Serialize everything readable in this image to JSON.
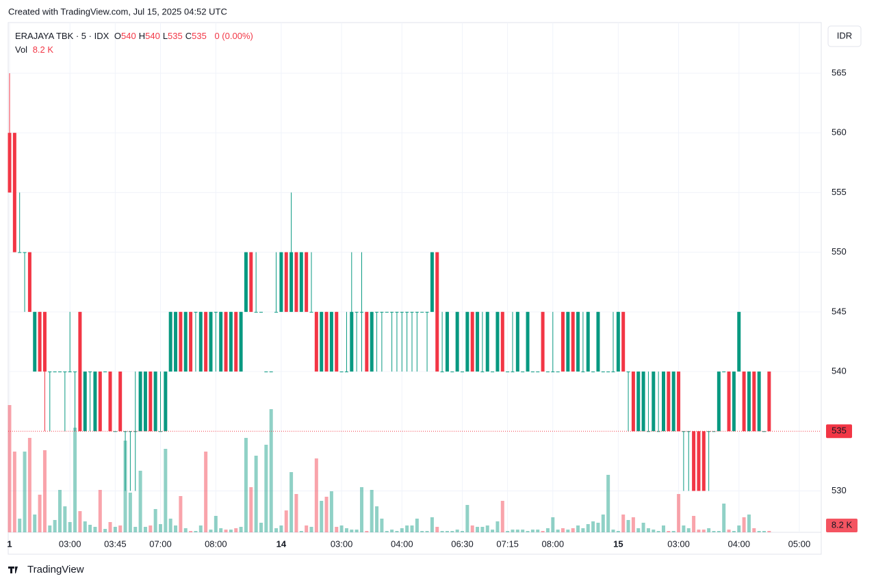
{
  "watermark": "Created with TradingView.com, Jul 15, 2025 04:52 UTC",
  "brand": "TradingView",
  "chart_data": {
    "type": "candlestick",
    "symbol": "ERAJAYA TBK · 5 · IDX",
    "ohlc_letters": [
      "O",
      "H",
      "L",
      "C"
    ],
    "change_label": "0 (0.00%)",
    "volume_title": "Vol",
    "last_volume_label": "8.2 K",
    "currency": "IDR",
    "up_color": "#089981",
    "down_color": "#f23645",
    "grid": true,
    "ylim": [
      526.53,
      569.24
    ],
    "yticks": [
      530,
      540,
      545,
      550,
      555,
      560,
      565
    ],
    "xticks": [
      {
        "value": 0,
        "label": "1"
      },
      {
        "value": 12,
        "label": "03:00"
      },
      {
        "value": 21,
        "label": "03:45"
      },
      {
        "value": 30,
        "label": "07:00"
      },
      {
        "value": 41,
        "label": "08:00"
      },
      {
        "value": 54,
        "label": "14"
      },
      {
        "value": 66,
        "label": "03:00"
      },
      {
        "value": 78,
        "label": "04:00"
      },
      {
        "value": 90,
        "label": "06:30"
      },
      {
        "value": 99,
        "label": "07:15"
      },
      {
        "value": 108,
        "label": "08:00"
      },
      {
        "value": 121,
        "label": "15"
      },
      {
        "value": 133,
        "label": "03:00"
      },
      {
        "value": 145,
        "label": "04:00"
      },
      {
        "value": 157,
        "label": "05:00"
      }
    ],
    "candles": [
      [
        560,
        565,
        555,
        555,
        744000
      ],
      [
        560,
        560,
        550,
        550,
        472000
      ],
      [
        550,
        555,
        550,
        550,
        80000
      ],
      [
        550,
        550,
        545,
        550,
        472000
      ],
      [
        550,
        550,
        545,
        545,
        552000
      ],
      [
        540,
        545,
        540,
        545,
        104000
      ],
      [
        545,
        545,
        540,
        540,
        220000
      ],
      [
        545,
        545,
        535,
        540,
        480000
      ],
      [
        540,
        540,
        535,
        540,
        40000
      ],
      [
        540,
        540,
        540,
        540,
        72000
      ],
      [
        540,
        540,
        540,
        540,
        248000
      ],
      [
        540,
        540,
        535,
        540,
        152000
      ],
      [
        540,
        545,
        540,
        540,
        60000
      ],
      [
        540,
        540,
        535,
        540,
        612000
      ],
      [
        545,
        545,
        535,
        535,
        124000
      ],
      [
        535,
        540,
        535,
        540,
        64000
      ],
      [
        540,
        540,
        535,
        540,
        44000
      ],
      [
        535,
        540,
        535,
        540,
        32000
      ],
      [
        540,
        540,
        535,
        535,
        248000
      ],
      [
        540,
        540,
        540,
        540,
        20000
      ],
      [
        540,
        540,
        535,
        535,
        60000
      ],
      [
        535,
        535,
        535,
        535,
        32000
      ],
      [
        540,
        540,
        535,
        535,
        40000
      ],
      [
        535,
        535,
        530,
        535,
        536000
      ],
      [
        535,
        535,
        530,
        535,
        232000
      ],
      [
        535,
        540,
        530,
        535,
        32000
      ],
      [
        535,
        540,
        535,
        540,
        360000
      ],
      [
        535,
        540,
        535,
        540,
        32000
      ],
      [
        540,
        540,
        535,
        535,
        40000
      ],
      [
        535,
        540,
        535,
        540,
        136000
      ],
      [
        535,
        540,
        535,
        535,
        48000
      ],
      [
        535,
        540,
        535,
        540,
        488000
      ],
      [
        540,
        545,
        540,
        545,
        80000
      ],
      [
        540,
        545,
        540,
        545,
        40000
      ],
      [
        545,
        545,
        540,
        540,
        212000
      ],
      [
        540,
        545,
        540,
        545,
        24000
      ],
      [
        545,
        545,
        540,
        540,
        8000
      ],
      [
        545,
        545,
        540,
        545,
        8000
      ],
      [
        540,
        545,
        540,
        545,
        40000
      ],
      [
        545,
        545,
        540,
        540,
        472000
      ],
      [
        540,
        545,
        540,
        545,
        16000
      ],
      [
        545,
        545,
        540,
        545,
        96000
      ],
      [
        540,
        545,
        540,
        545,
        24000
      ],
      [
        545,
        545,
        540,
        540,
        16000
      ],
      [
        540,
        545,
        540,
        545,
        16000
      ],
      [
        545,
        545,
        540,
        540,
        24000
      ],
      [
        540,
        545,
        540,
        545,
        32000
      ],
      [
        545,
        550,
        545,
        550,
        552000
      ],
      [
        550,
        550,
        545,
        545,
        264000
      ],
      [
        545,
        550,
        545,
        545,
        448000
      ],
      [
        545,
        545,
        545,
        545,
        56000
      ],
      [
        540,
        540,
        540,
        540,
        512000
      ],
      [
        540,
        540,
        540,
        540,
        720000
      ],
      [
        545,
        550,
        545,
        545,
        24000
      ],
      [
        545,
        550,
        545,
        550,
        40000
      ],
      [
        550,
        550,
        545,
        545,
        128000
      ],
      [
        545,
        555,
        545,
        550,
        352000
      ],
      [
        550,
        550,
        545,
        545,
        224000
      ],
      [
        545,
        550,
        545,
        550,
        8000
      ],
      [
        550,
        550,
        545,
        545,
        40000
      ],
      [
        545,
        550,
        545,
        545,
        32000
      ],
      [
        545,
        545,
        540,
        540,
        432000
      ],
      [
        540,
        545,
        540,
        545,
        184000
      ],
      [
        545,
        545,
        540,
        540,
        208000
      ],
      [
        540,
        545,
        540,
        545,
        240000
      ],
      [
        545,
        545,
        540,
        540,
        32000
      ],
      [
        540,
        540,
        540,
        540,
        40000
      ],
      [
        540,
        545,
        540,
        540,
        24000
      ],
      [
        540,
        550,
        540,
        545,
        16000
      ],
      [
        545,
        545,
        540,
        545,
        16000
      ],
      [
        545,
        550,
        540,
        545,
        264000
      ],
      [
        545,
        545,
        540,
        540,
        8000
      ],
      [
        540,
        545,
        540,
        545,
        248000
      ],
      [
        545,
        545,
        540,
        545,
        152000
      ],
      [
        545,
        545,
        540,
        545,
        80000
      ],
      [
        545,
        545,
        545,
        545,
        8000
      ],
      [
        545,
        545,
        540,
        545,
        16000
      ],
      [
        545,
        545,
        540,
        545,
        8000
      ],
      [
        545,
        545,
        540,
        545,
        24000
      ],
      [
        545,
        545,
        540,
        545,
        40000
      ],
      [
        545,
        545,
        540,
        545,
        40000
      ],
      [
        545,
        545,
        540,
        545,
        80000
      ],
      [
        545,
        545,
        545,
        545,
        8000
      ],
      [
        545,
        545,
        540,
        545,
        8000
      ],
      [
        545,
        550,
        545,
        550,
        88000
      ],
      [
        550,
        550,
        540,
        540,
        32000
      ],
      [
        540,
        545,
        540,
        540,
        8000
      ],
      [
        540,
        545,
        540,
        545,
        8000
      ],
      [
        540,
        540,
        540,
        540,
        8000
      ],
      [
        540,
        545,
        540,
        545,
        16000
      ],
      [
        540,
        540,
        540,
        540,
        8000
      ],
      [
        540,
        545,
        540,
        545,
        160000
      ],
      [
        545,
        545,
        540,
        540,
        40000
      ],
      [
        540,
        545,
        540,
        545,
        32000
      ],
      [
        540,
        545,
        540,
        540,
        32000
      ],
      [
        540,
        545,
        540,
        545,
        40000
      ],
      [
        540,
        540,
        540,
        540,
        16000
      ],
      [
        540,
        545,
        540,
        545,
        64000
      ],
      [
        545,
        545,
        540,
        540,
        184000
      ],
      [
        540,
        540,
        540,
        540,
        8000
      ],
      [
        540,
        545,
        540,
        540,
        16000
      ],
      [
        540,
        545,
        540,
        545,
        16000
      ],
      [
        540,
        540,
        540,
        540,
        16000
      ],
      [
        540,
        545,
        540,
        545,
        8000
      ],
      [
        540,
        540,
        540,
        540,
        16000
      ],
      [
        540,
        540,
        540,
        540,
        16000
      ],
      [
        545,
        545,
        540,
        540,
        8000
      ],
      [
        540,
        540,
        540,
        540,
        24000
      ],
      [
        540,
        545,
        540,
        540,
        88000
      ],
      [
        540,
        540,
        540,
        540,
        16000
      ],
      [
        545,
        545,
        540,
        540,
        24000
      ],
      [
        540,
        545,
        540,
        545,
        16000
      ],
      [
        545,
        545,
        540,
        540,
        24000
      ],
      [
        540,
        545,
        540,
        545,
        40000
      ],
      [
        540,
        545,
        540,
        540,
        24000
      ],
      [
        540,
        545,
        540,
        545,
        48000
      ],
      [
        540,
        540,
        540,
        540,
        64000
      ],
      [
        540,
        545,
        540,
        545,
        56000
      ],
      [
        540,
        540,
        540,
        540,
        104000
      ],
      [
        540,
        540,
        540,
        540,
        336000
      ],
      [
        540,
        545,
        540,
        540,
        16000
      ],
      [
        540,
        545,
        540,
        545,
        8000
      ],
      [
        545,
        545,
        540,
        540,
        104000
      ],
      [
        540,
        540,
        535,
        540,
        72000
      ],
      [
        540,
        540,
        535,
        535,
        88000
      ],
      [
        535,
        540,
        535,
        540,
        24000
      ],
      [
        535,
        540,
        535,
        540,
        56000
      ],
      [
        535,
        540,
        535,
        535,
        24000
      ],
      [
        535,
        540,
        535,
        540,
        16000
      ],
      [
        535,
        540,
        535,
        535,
        8000
      ],
      [
        535,
        540,
        535,
        540,
        40000
      ],
      [
        540,
        540,
        535,
        535,
        8000
      ],
      [
        535,
        540,
        535,
        540,
        8000
      ],
      [
        540,
        540,
        535,
        535,
        224000
      ],
      [
        535,
        535,
        530,
        535,
        40000
      ],
      [
        535,
        535,
        530,
        535,
        24000
      ],
      [
        535,
        535,
        530,
        530,
        96000
      ],
      [
        535,
        535,
        530,
        530,
        16000
      ],
      [
        535,
        535,
        530,
        530,
        16000
      ],
      [
        535,
        535,
        530,
        535,
        24000
      ],
      [
        535,
        535,
        535,
        535,
        8000
      ],
      [
        535,
        540,
        535,
        540,
        8000
      ],
      [
        540,
        540,
        540,
        540,
        168000
      ],
      [
        540,
        540,
        535,
        535,
        16000
      ],
      [
        535,
        540,
        535,
        540,
        8000
      ],
      [
        540,
        545,
        540,
        545,
        40000
      ],
      [
        540,
        540,
        535,
        535,
        88000
      ],
      [
        535,
        540,
        535,
        540,
        104000
      ],
      [
        540,
        540,
        535,
        535,
        24000
      ],
      [
        535,
        540,
        535,
        540,
        8000
      ],
      [
        535,
        535,
        535,
        535,
        8000
      ],
      [
        540,
        540,
        535,
        535,
        8200
      ]
    ]
  }
}
